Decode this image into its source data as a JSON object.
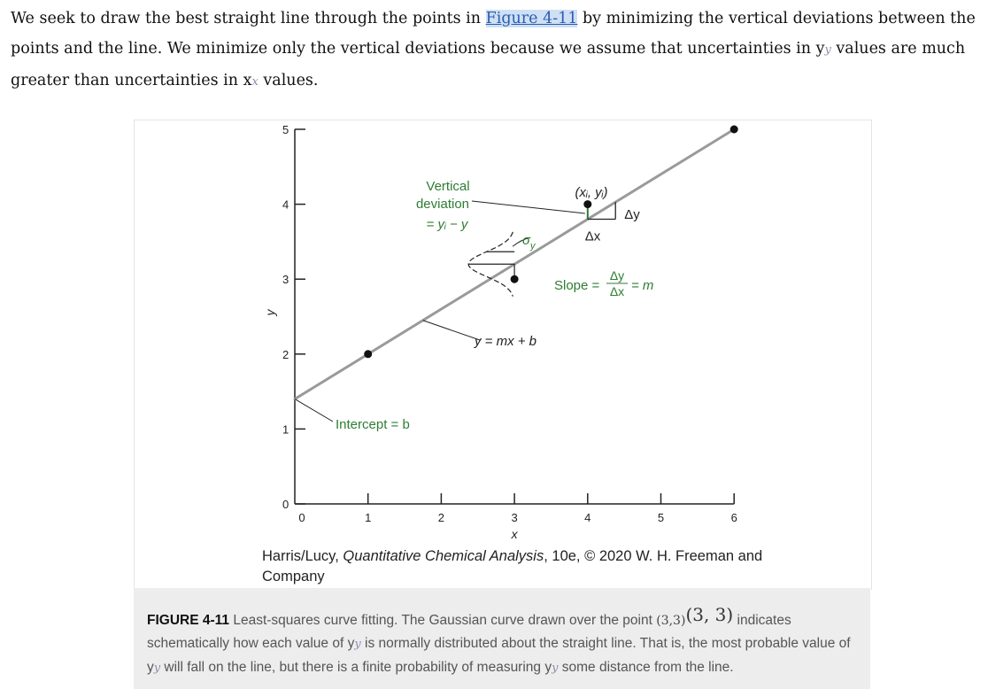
{
  "intro": {
    "part1": "We seek to draw the best straight line through the points in ",
    "link": "Figure 4-11",
    "part2": " by minimizing the vertical deviations between the points and the line. We minimize only the vertical deviations because we assume that uncertainties in y",
    "glyph_y": "y",
    "part3": " values are much greater than uncertainties in x",
    "glyph_x": "x",
    "part4": " values."
  },
  "credit": {
    "prefix": "Harris/Lucy, ",
    "book": "Quantitative Chemical Analysis",
    "suffix": ", 10e, © 2020 W. H. Freeman and Company"
  },
  "caption": {
    "figure_label": "FIGURE 4-11",
    "t1": " Least-squares curve fitting. The Gaussian curve drawn over the point ",
    "point_small": "(3,3)",
    "point_big": "(3, 3)",
    "t2": " indicates schematically how each value of y",
    "glyph1": "y",
    "t3": " is normally distributed about the straight line. That is, the most probable value of y",
    "glyph2": "y",
    "t4": " will fall on the line, but there is a finite probability of measuring y",
    "glyph3": "y",
    "t5": " some distance from the line."
  },
  "chart_data": {
    "type": "scatter",
    "title": "",
    "xlabel": "x",
    "ylabel": "y",
    "xlim": [
      0,
      6
    ],
    "ylim": [
      0,
      5
    ],
    "x_ticks": [
      "0",
      "1",
      "2",
      "3",
      "4",
      "5",
      "6"
    ],
    "y_ticks": [
      "0",
      "1",
      "2",
      "3",
      "4",
      "5"
    ],
    "points": [
      {
        "x": 1,
        "y": 2
      },
      {
        "x": 3,
        "y": 3
      },
      {
        "x": 4,
        "y": 4
      },
      {
        "x": 6,
        "y": 5
      }
    ],
    "line": {
      "slope": 0.6,
      "intercept": 1.4,
      "x_range": [
        0,
        6
      ]
    },
    "colors": {
      "line": "#9a9a9a",
      "annotation": "#2e7d32",
      "point": "#111111",
      "axis": "#222222"
    },
    "annotations": {
      "vertical_deviation_1": "Vertical",
      "vertical_deviation_2": "deviation",
      "vertical_deviation_3": "= yᵢ − y",
      "sigma": "σ",
      "sigma_sub": "y",
      "point_label": "(xᵢ, yᵢ)",
      "delta_y": "Δy",
      "delta_x": "Δx",
      "slope_prefix": "Slope =",
      "slope_num": "Δy",
      "slope_den": "Δx",
      "slope_suffix": "= m",
      "equation": "y = mx + b",
      "intercept": "Intercept = b"
    }
  }
}
